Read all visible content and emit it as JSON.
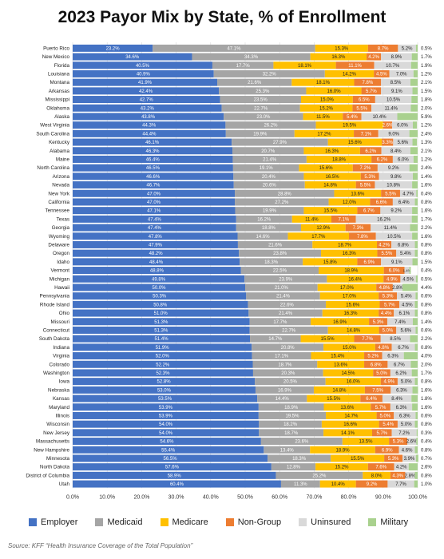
{
  "chart_data": {
    "type": "bar",
    "orientation": "horizontal",
    "stacked": true,
    "title": "2023 Payor Mix by State, % of Enrollment",
    "source": "Source: KFF “Health Insurance Coverage of the Total Population”",
    "xlim": [
      0,
      100
    ],
    "x_ticks": [
      "0.0%",
      "10.0%",
      "20.0%",
      "30.0%",
      "40.0%",
      "50.0%",
      "60.0%",
      "70.0%",
      "80.0%",
      "90.0%",
      "100.0%"
    ],
    "grid": true,
    "legend_position": "bottom",
    "colors": {
      "Employer": "#4472C4",
      "Medicaid": "#A5A5A5",
      "Medicare": "#FFC000",
      "Non-Group": "#ED7D31",
      "Uninsured": "#D9D9D9",
      "Military": "#A9D18E"
    },
    "series_names": [
      "Employer",
      "Medicaid",
      "Medicare",
      "Non-Group",
      "Uninsured",
      "Military"
    ],
    "categories": [
      "Puerto Rico",
      "New Mexico",
      "Florida",
      "Louisiana",
      "Montana",
      "Arkansas",
      "Mississippi",
      "Oklahoma",
      "Alaska",
      "West Virginia",
      "South Carolina",
      "Kentucky",
      "Alabama",
      "Maine",
      "North Carolina",
      "Arizona",
      "Nevada",
      "New York",
      "California",
      "Tennessee",
      "Texas",
      "Georgia",
      "Wyoming",
      "Delaware",
      "Oregon",
      "Idaho",
      "Vermont",
      "Michigan",
      "Hawaii",
      "Pennsylvania",
      "Rhode Island",
      "Ohio",
      "Missouri",
      "Connecticut",
      "South Dakota",
      "Indiana",
      "Virginia",
      "Colorado",
      "Washington",
      "Iowa",
      "Nebraska",
      "Kansas",
      "Maryland",
      "Illinois",
      "Wisconsin",
      "New Jersey",
      "Massachusetts",
      "New Hampshire",
      "Minnesota",
      "North Dakota",
      "District of Columbia",
      "Utah"
    ],
    "rows": [
      [
        23.2,
        47.1,
        15.3,
        8.7,
        5.2,
        0.5
      ],
      [
        34.6,
        34.3,
        16.3,
        4.2,
        8.9,
        1.7
      ],
      [
        40.5,
        17.7,
        18.1,
        11.1,
        10.7,
        1.9
      ],
      [
        40.9,
        32.2,
        14.2,
        4.5,
        7.0,
        1.2
      ],
      [
        41.9,
        21.6,
        18.1,
        7.8,
        8.5,
        2.1
      ],
      [
        42.4,
        25.3,
        16.0,
        5.7,
        9.1,
        1.5
      ],
      [
        42.7,
        23.5,
        15.0,
        6.5,
        10.5,
        1.8
      ],
      [
        43.2,
        22.7,
        15.2,
        5.5,
        11.4,
        2.0
      ],
      [
        43.8,
        23.0,
        11.5,
        5.4,
        10.4,
        5.9
      ],
      [
        44.3,
        26.2,
        19.5,
        2.6,
        6.0,
        1.2
      ],
      [
        44.4,
        19.9,
        17.2,
        7.1,
        9.0,
        2.4
      ],
      [
        46.1,
        27.9,
        15.6,
        3.3,
        5.6,
        1.3
      ],
      [
        46.3,
        20.7,
        16.3,
        6.2,
        8.4,
        2.1
      ],
      [
        46.4,
        21.4,
        18.8,
        6.2,
        6.0,
        1.2
      ],
      [
        46.5,
        19.1,
        15.6,
        7.2,
        9.2,
        2.4
      ],
      [
        46.6,
        20.4,
        16.5,
        5.3,
        9.8,
        1.4
      ],
      [
        46.7,
        20.6,
        14.8,
        5.5,
        10.8,
        1.6
      ],
      [
        47.0,
        28.8,
        13.6,
        5.5,
        4.7,
        0.4
      ],
      [
        47.0,
        27.2,
        12.0,
        6.6,
        6.4,
        0.8
      ],
      [
        47.1,
        19.9,
        15.5,
        6.7,
        9.2,
        1.6
      ],
      [
        47.4,
        16.2,
        11.4,
        7.1,
        16.2,
        1.7
      ],
      [
        47.4,
        18.8,
        12.9,
        7.3,
        11.4,
        2.2
      ],
      [
        47.8,
        14.6,
        17.7,
        7.8,
        10.5,
        1.6
      ],
      [
        47.9,
        21.6,
        18.7,
        4.2,
        6.8,
        0.8
      ],
      [
        48.2,
        23.8,
        16.3,
        5.5,
        5.4,
        0.8
      ],
      [
        48.4,
        18.3,
        15.8,
        6.9,
        9.1,
        1.5
      ],
      [
        48.8,
        22.5,
        18.9,
        6.0,
        1.4,
        0.4
      ],
      [
        49.8,
        23.9,
        16.4,
        4.9,
        4.5,
        0.5
      ],
      [
        50.0,
        21.0,
        17.0,
        4.8,
        2.8,
        4.4
      ],
      [
        50.3,
        21.4,
        17.0,
        5.3,
        5.4,
        0.6
      ],
      [
        50.8,
        22.6,
        15.6,
        5.7,
        4.5,
        0.8
      ],
      [
        51.0,
        21.4,
        16.3,
        4.4,
        6.1,
        0.8
      ],
      [
        51.3,
        17.7,
        16.9,
        5.3,
        7.4,
        1.4
      ],
      [
        51.3,
        22.7,
        14.8,
        5.0,
        5.6,
        0.6
      ],
      [
        51.4,
        14.7,
        15.5,
        7.7,
        8.5,
        2.2
      ],
      [
        51.9,
        20.8,
        15.0,
        4.8,
        6.7,
        0.8
      ],
      [
        52.0,
        17.1,
        15.4,
        5.2,
        6.3,
        4.0
      ],
      [
        52.2,
        18.7,
        13.6,
        6.8,
        6.7,
        2.0
      ],
      [
        52.3,
        20.3,
        14.5,
        5.0,
        6.2,
        1.7
      ],
      [
        52.8,
        20.5,
        16.0,
        4.9,
        5.0,
        0.8
      ],
      [
        53.0,
        16.9,
        14.8,
        7.5,
        6.3,
        1.6
      ],
      [
        53.5,
        14.4,
        15.5,
        6.4,
        8.4,
        1.8
      ],
      [
        53.9,
        18.9,
        13.6,
        5.7,
        6.3,
        1.6
      ],
      [
        53.9,
        19.5,
        14.7,
        5.0,
        6.3,
        0.6
      ],
      [
        54.0,
        18.2,
        16.6,
        5.4,
        5.0,
        0.8
      ],
      [
        54.0,
        18.7,
        14.1,
        5.7,
        7.2,
        0.3
      ],
      [
        54.6,
        23.6,
        13.5,
        5.3,
        2.6,
        0.4
      ],
      [
        55.4,
        13.4,
        18.9,
        6.9,
        4.6,
        0.8
      ],
      [
        56.5,
        18.3,
        15.5,
        5.3,
        3.9,
        0.7
      ],
      [
        57.6,
        12.8,
        15.2,
        7.6,
        4.2,
        2.6
      ],
      [
        58.9,
        25.2,
        8.0,
        4.3,
        2.8,
        0.8
      ],
      [
        60.4,
        11.3,
        10.4,
        9.2,
        7.7,
        1.0
      ]
    ]
  }
}
